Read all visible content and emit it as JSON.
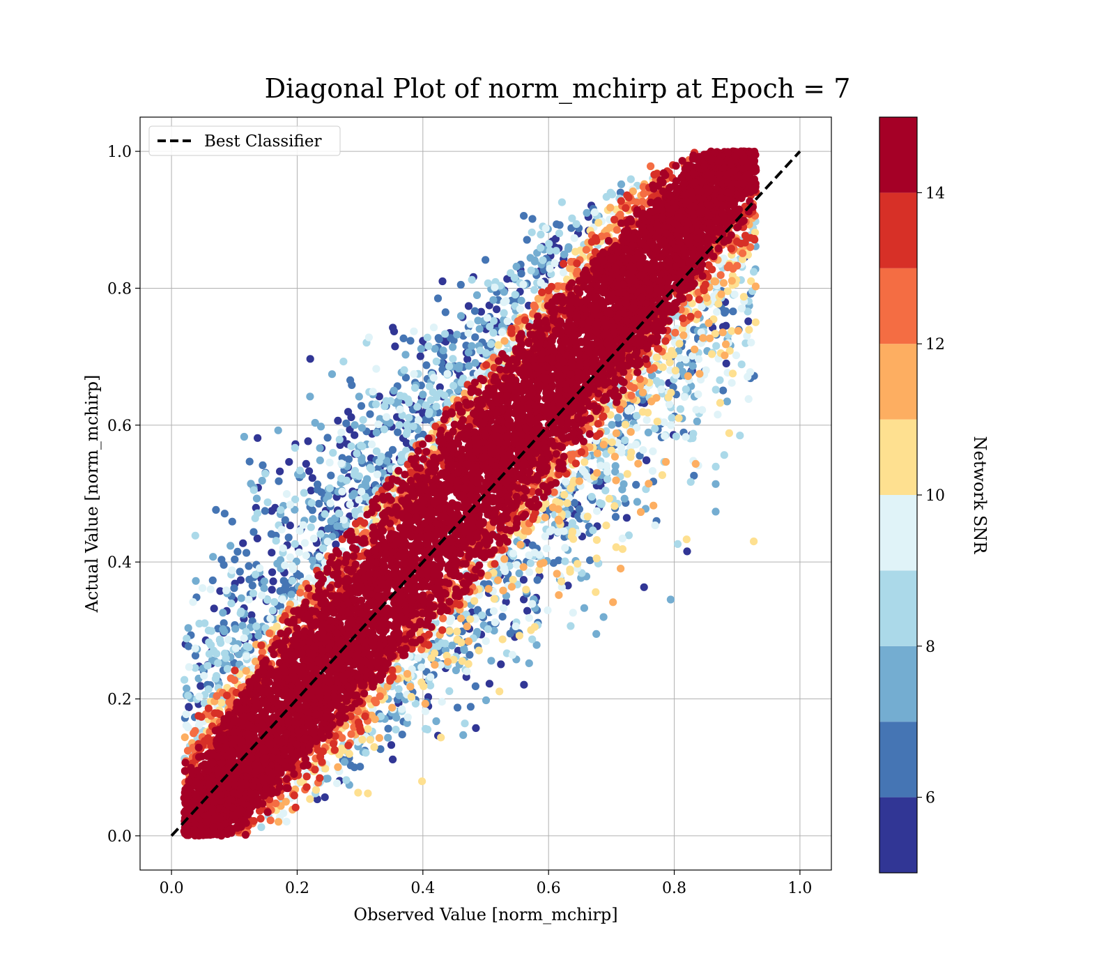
{
  "chart_data": {
    "type": "scatter",
    "title": "Diagonal Plot of norm_mchirp at Epoch = 7",
    "xlabel": "Observed Value [norm_mchirp]",
    "ylabel": "Actual Value [norm_mchirp]",
    "xlim": [
      -0.05,
      1.05
    ],
    "ylim": [
      -0.05,
      1.05
    ],
    "xticks": [
      "0.0",
      "0.2",
      "0.4",
      "0.6",
      "0.8",
      "1.0"
    ],
    "yticks": [
      "0.0",
      "0.2",
      "0.4",
      "0.6",
      "0.8",
      "1.0"
    ],
    "grid": true,
    "legend": {
      "placement": "top-left",
      "entries": [
        "Best Classifier"
      ]
    },
    "reference_line": {
      "name": "Best Classifier",
      "style": "dashed",
      "color": "#000000",
      "x": [
        0.0,
        1.0
      ],
      "y": [
        0.0,
        1.0
      ]
    },
    "colorbar": {
      "label": "Network SNR",
      "range": [
        5,
        15
      ],
      "ticks": [
        "6",
        "8",
        "10",
        "12",
        "14"
      ],
      "levels": [
        5,
        6,
        7,
        8,
        9,
        10,
        11,
        12,
        13,
        14,
        15
      ],
      "colors": [
        "#313695",
        "#4575b4",
        "#74add1",
        "#abd9e9",
        "#e0f3f8",
        "#fee090",
        "#fdae61",
        "#f46d43",
        "#d73027",
        "#a50026"
      ]
    },
    "points_description": {
      "main_band": {
        "x_range": [
          0.03,
          0.92
        ],
        "y_range": [
          0.0,
          1.0
        ],
        "snr": "≥14",
        "color": "#a50026"
      },
      "upper_left_scatter": {
        "region": "above diagonal, x 0.05–0.65, y 0.4–1.0",
        "snr": "5–9"
      },
      "lower_right_scatter": {
        "region": "below diagonal, x 0.3–0.85, y 0.0–0.5",
        "snr": "5–11"
      }
    }
  }
}
